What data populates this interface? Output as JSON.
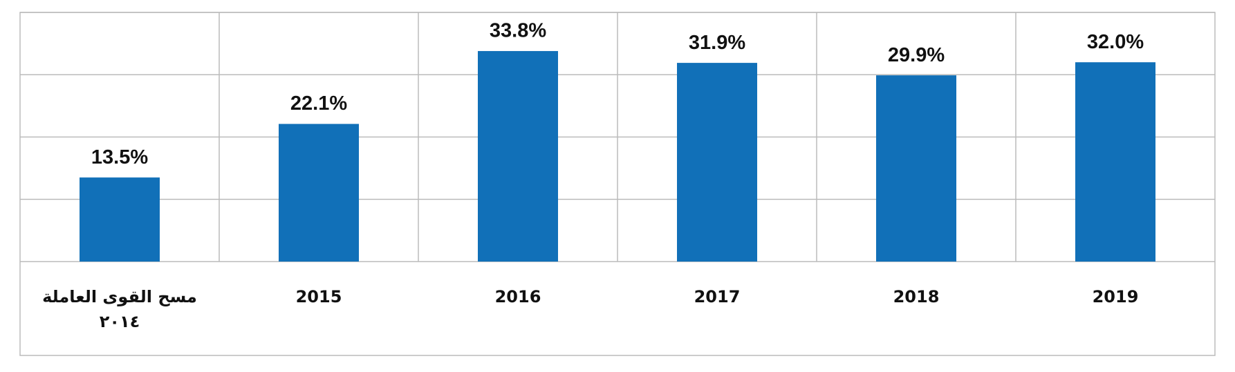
{
  "chart_data": {
    "type": "bar",
    "categories": [
      "مسح القوى العاملة\n٢٠١٤",
      "2015",
      "2016",
      "2017",
      "2018",
      "2019"
    ],
    "values": [
      13.5,
      22.1,
      33.8,
      31.9,
      29.9,
      32.0
    ],
    "value_labels": [
      "13.5%",
      "22.1%",
      "33.8%",
      "31.9%",
      "29.9%",
      "32.0%"
    ],
    "color": "#1170b8",
    "ylim": [
      0,
      40
    ],
    "yticks": [
      0,
      10,
      20,
      30,
      40
    ],
    "grid": true
  }
}
